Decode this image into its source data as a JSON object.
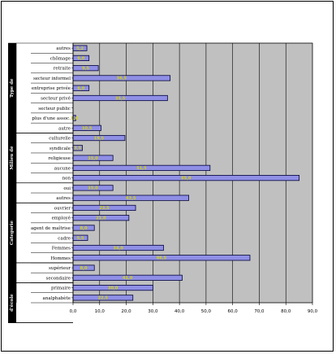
{
  "chart_data": {
    "type": "bar",
    "orientation": "horizontal",
    "xlim": [
      0,
      90
    ],
    "x_ticks": [
      "0,0",
      "10,0",
      "20,0",
      "30,0",
      "40,0",
      "50,0",
      "60,0",
      "70,0",
      "80,0",
      "90,0"
    ],
    "grid": true,
    "colors": {
      "bar": "#8f8fe6",
      "bar_edge": "#00003a",
      "plot_bg": "#c0c0c0",
      "label": "#d4d400"
    },
    "groups": [
      {
        "label": "Type de",
        "rows": [
          0,
          8
        ]
      },
      {
        "label": "Milieu de",
        "rows": [
          9,
          13
        ]
      },
      {
        "label": "",
        "rows": [
          14,
          15
        ]
      },
      {
        "label": "Categorie",
        "rows": [
          16,
          21
        ]
      },
      {
        "label": "",
        "rows": [
          22,
          23
        ]
      },
      {
        "label": "d'école",
        "rows": [
          24,
          27
        ]
      }
    ],
    "categories": [
      "autres",
      "chômage",
      "retraite",
      "secteur informel",
      "entreprise privée",
      "secteur privé",
      "secteur public",
      "plus d'une assoc.",
      "autre",
      "culturelle",
      "syndicale",
      "religieuse",
      "aucune",
      "non",
      "oui",
      "autres",
      "ouvrier",
      "employé",
      "agent de maîtrise",
      "cadre",
      "Femmes",
      "Hommes",
      "supérieur",
      "secondaire",
      "primaire",
      "analphabète"
    ],
    "values": [
      5.2,
      6.0,
      9.5,
      36.5,
      6.0,
      35.5,
      0.0,
      1.0,
      10.5,
      19.5,
      3.5,
      15.0,
      51.5,
      85.0,
      15.0,
      43.5,
      23.5,
      21.0,
      8.0,
      5.5,
      34.0,
      66.5,
      8.0,
      41.0,
      30.0,
      22.5
    ],
    "data_labels": [
      "5,2",
      "6,0",
      "9,5",
      "36,5",
      "6,0",
      "35,5",
      "",
      "1,0",
      "10,5",
      "19,5",
      "3,5",
      "15,0",
      "51,5",
      "85,0",
      "15,0",
      "43,5",
      "23,5",
      "21,0",
      "8,0",
      "5,5",
      "34,0",
      "66,5",
      "8,0",
      "41,0",
      "30,0",
      "22,5"
    ]
  }
}
